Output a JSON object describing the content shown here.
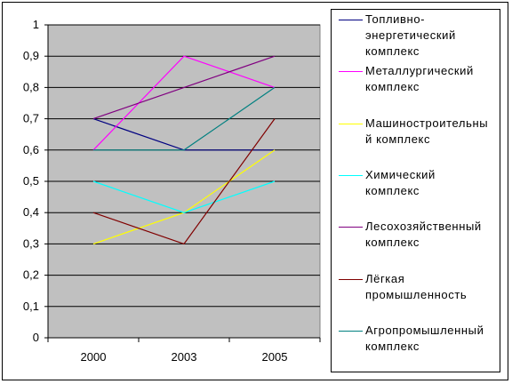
{
  "chart_data": {
    "type": "line",
    "categories": [
      "2000",
      "2003",
      "2005"
    ],
    "ylim": [
      0,
      1
    ],
    "yticks": [
      "0",
      "0,1",
      "0,2",
      "0,3",
      "0,4",
      "0,5",
      "0,6",
      "0,7",
      "0,8",
      "0,9",
      "1"
    ],
    "grid": true,
    "plot_background": "#c0c0c0",
    "legend_position": "right",
    "series": [
      {
        "name": "Топливно-энергетический комплекс",
        "color": "#000080",
        "values": [
          0.7,
          0.6,
          0.6
        ]
      },
      {
        "name": "Металлургический комплекс",
        "color": "#ff00ff",
        "values": [
          0.6,
          0.9,
          0.8
        ]
      },
      {
        "name": "Машиностроительный комплекс",
        "color": "#ffff00",
        "values": [
          0.3,
          0.4,
          0.6
        ]
      },
      {
        "name": "Химический комплекс",
        "color": "#00ffff",
        "values": [
          0.5,
          0.4,
          0.5
        ]
      },
      {
        "name": "Лесохозяйственный комплекс",
        "color": "#800080",
        "values": [
          0.7,
          0.8,
          0.9
        ]
      },
      {
        "name": "Лёгкая промышленность",
        "color": "#800000",
        "values": [
          0.4,
          0.3,
          0.7
        ]
      },
      {
        "name": "Агропромышленный комплекс",
        "color": "#008080",
        "values": [
          0.6,
          0.6,
          0.8
        ]
      }
    ]
  },
  "legend": {
    "lines": [
      [
        "Топливно-",
        "энергетический",
        "комплекс"
      ],
      [
        "Металлургический",
        "комплекс"
      ],
      [
        "Машиностроительны",
        "й комплекс"
      ],
      [
        "Химический",
        "комплекс"
      ],
      [
        "Лесохозяйственный",
        "комплекс"
      ],
      [
        "Лёгкая",
        "промышленность"
      ],
      [
        "Агропромышленный",
        "комплекс"
      ]
    ]
  }
}
